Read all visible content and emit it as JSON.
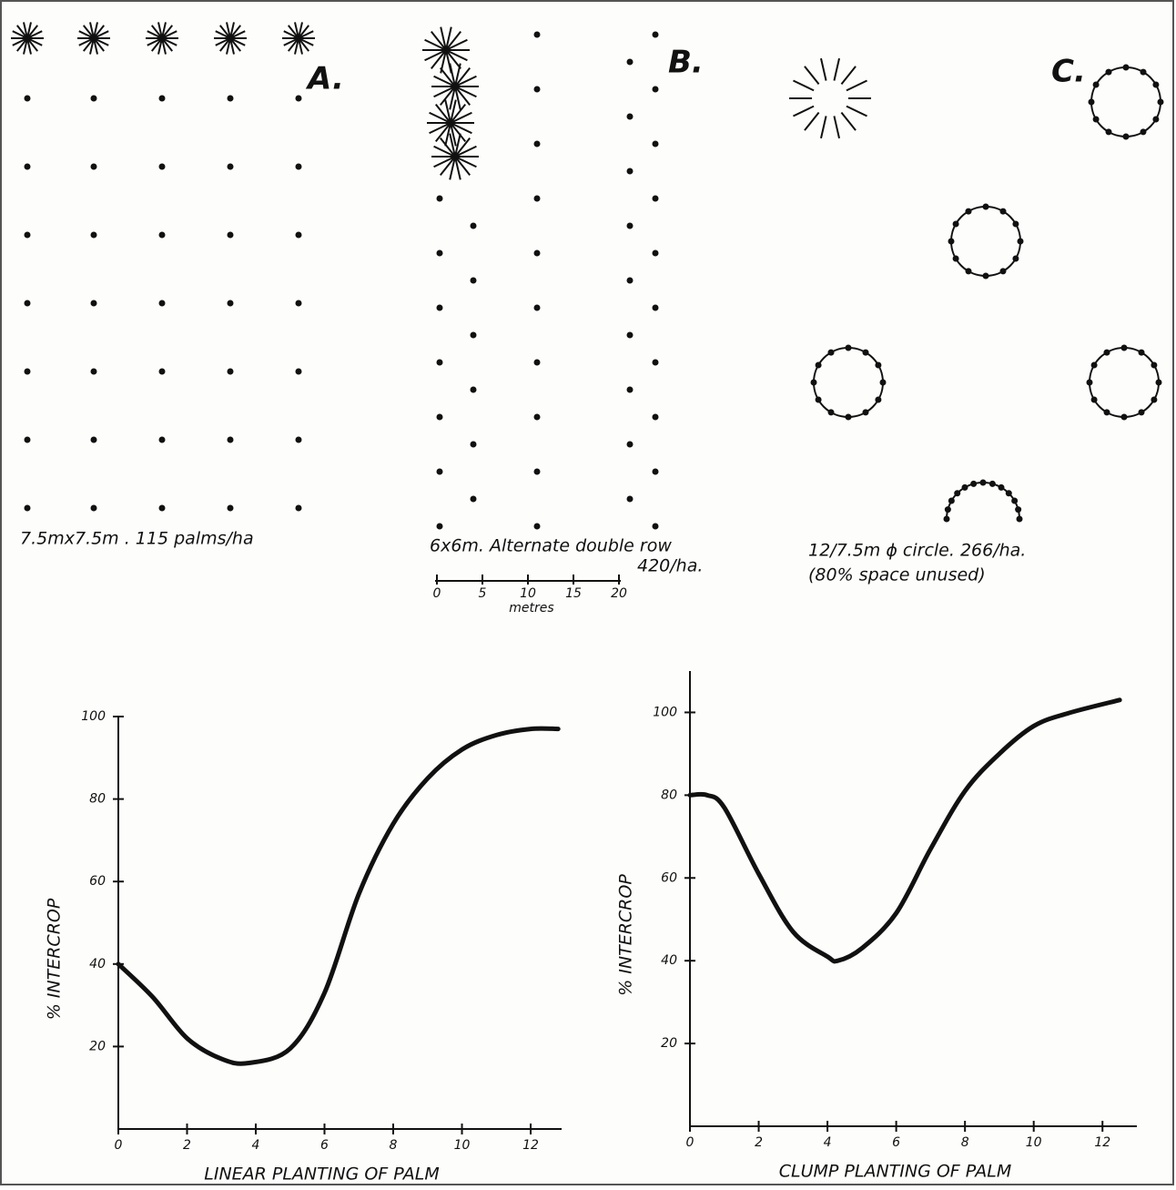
{
  "diagrams": {
    "a": {
      "label": "A.",
      "caption": "7.5mx7.5m . 115 palms/ha"
    },
    "b": {
      "label": "B.",
      "caption": "6x6m. Alternate double row",
      "caption2": "420/ha."
    },
    "c": {
      "label": "C.",
      "caption": "12/7.5m ϕ circle. 266/ha.",
      "caption2": "(80% space unused)"
    },
    "scale": {
      "ticks": [
        "0",
        "5",
        "10",
        "15",
        "20"
      ],
      "unit": "metres"
    }
  },
  "chart_data": [
    {
      "type": "line",
      "x_label": "LINEAR PLANTING OF PALM",
      "y_label": "% INTERCROP",
      "x": [
        0,
        1,
        2,
        3,
        3.8,
        5,
        6,
        7,
        8,
        9,
        10,
        11,
        12,
        12.8
      ],
      "values": [
        40,
        32,
        22,
        17,
        16,
        19.5,
        33,
        57,
        74,
        85,
        92,
        95.5,
        97,
        97
      ],
      "xlim": [
        0,
        12.9
      ],
      "ylim": [
        0,
        100
      ],
      "xticks": [
        0,
        2,
        4,
        6,
        8,
        10,
        12
      ],
      "yticks": [
        20,
        40,
        60,
        80,
        100
      ],
      "color": "#111111"
    },
    {
      "type": "line",
      "x_label": "CLUMP PLANTING OF PALM",
      "y_label": "% INTERCROP",
      "x": [
        0,
        0.5,
        1,
        2,
        3,
        4,
        4.3,
        5,
        6,
        7,
        8,
        9,
        10,
        11,
        12.5
      ],
      "values": [
        80,
        80,
        77,
        61,
        47,
        41,
        40,
        43,
        51.5,
        67,
        81,
        90,
        96.7,
        99.8,
        103
      ],
      "xlim": [
        0,
        13
      ],
      "ylim": [
        0,
        110
      ],
      "xticks": [
        0,
        2,
        4,
        6,
        8,
        10,
        12
      ],
      "yticks": [
        20,
        40,
        60,
        80,
        100
      ],
      "color": "#111111"
    }
  ]
}
